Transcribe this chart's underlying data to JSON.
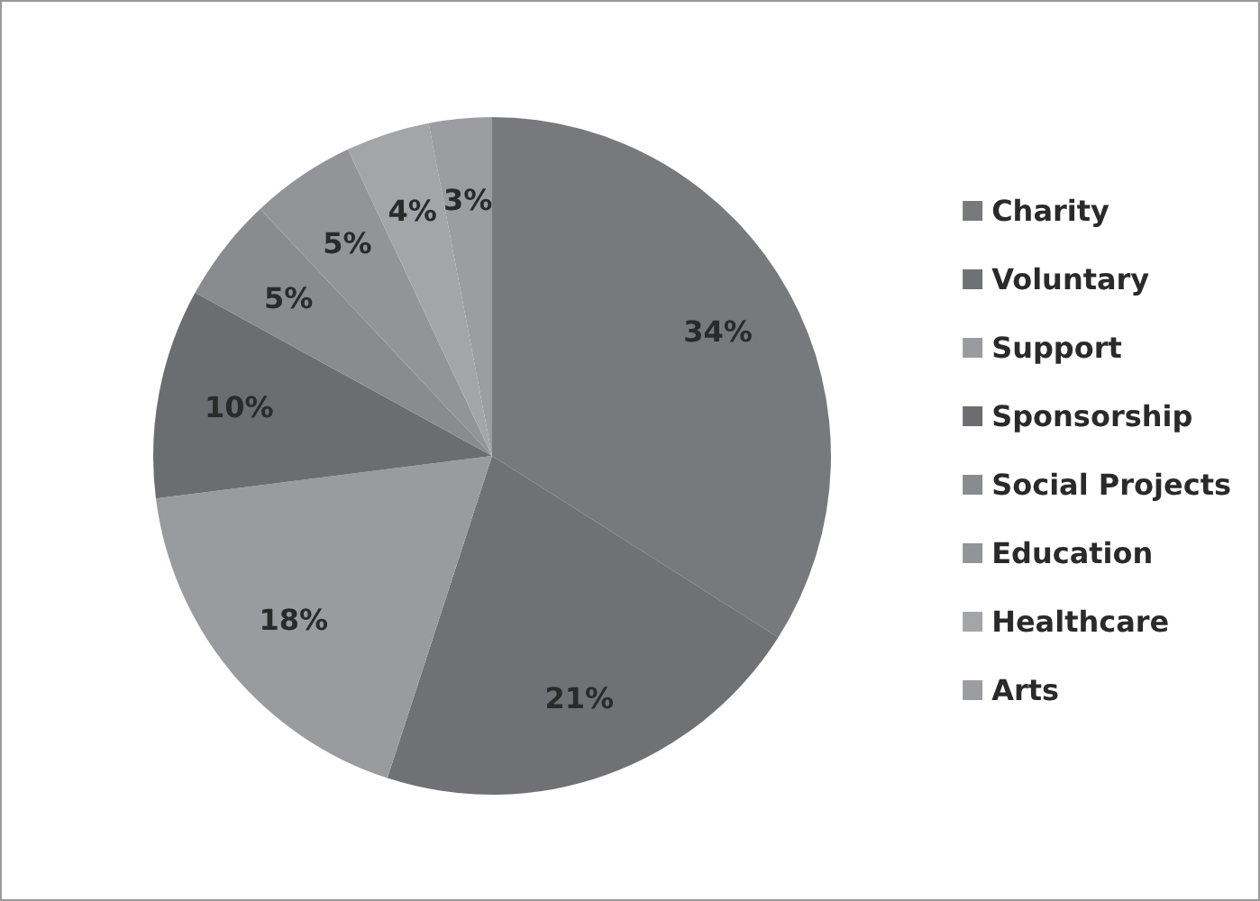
{
  "chart_data": {
    "type": "pie",
    "categories": [
      "Charity",
      "Voluntary",
      "Support",
      "Sponsorship",
      "Social Projects",
      "Education",
      "Healthcare",
      "Arts"
    ],
    "values": [
      34,
      21,
      18,
      10,
      5,
      5,
      4,
      3
    ],
    "colors": [
      "#78797d",
      "#707175",
      "#9a9b9f",
      "#6c6d71",
      "#8a8b8f",
      "#939498",
      "#a4a5a9",
      "#9c9da1"
    ],
    "value_labels": [
      "34%",
      "21%",
      "18%",
      "10%",
      "5%",
      "5%",
      "4%",
      "3%"
    ],
    "legend": "right"
  }
}
